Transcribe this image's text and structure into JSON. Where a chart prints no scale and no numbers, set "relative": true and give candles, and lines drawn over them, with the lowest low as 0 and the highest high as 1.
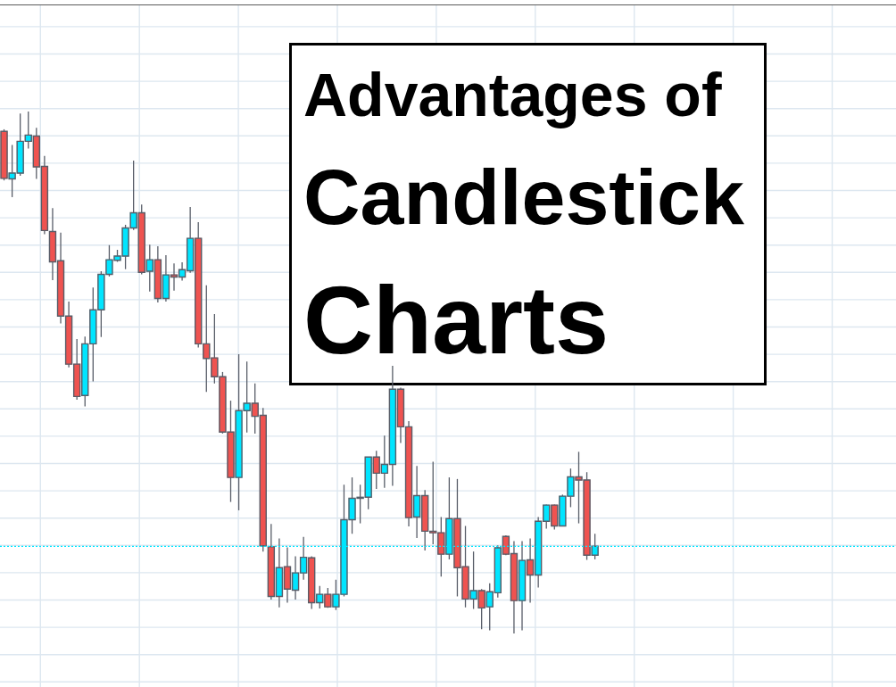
{
  "chart_data": {
    "type": "candlestick",
    "title": "Advantages of Candlestick Charts",
    "relative": true,
    "grid": true,
    "tick_labels": false,
    "categories": [
      null,
      null,
      null,
      null,
      null,
      null,
      null,
      null,
      null,
      null,
      null,
      null,
      null,
      null,
      null,
      null,
      null,
      null,
      null,
      null,
      null,
      null,
      null,
      null,
      null,
      null,
      null,
      null,
      null,
      null,
      null,
      null,
      null,
      null,
      null,
      null,
      null,
      null,
      null,
      null,
      null,
      null,
      null,
      null,
      null,
      null,
      null,
      null,
      null,
      null,
      null,
      null,
      null,
      null,
      null,
      null,
      null,
      null,
      null,
      null,
      null,
      null,
      null,
      null,
      null,
      null,
      null,
      null,
      null,
      null,
      null,
      null,
      null,
      null
    ],
    "ohlc": [
      [
        0.962,
        0.966,
        0.868,
        0.872
      ],
      [
        0.871,
        0.936,
        0.836,
        0.882
      ],
      [
        0.882,
        0.996,
        0.877,
        0.943
      ],
      [
        0.943,
        1,
        0.929,
        0.955
      ],
      [
        0.953,
        0.969,
        0.871,
        0.894
      ],
      [
        0.895,
        0.915,
        0.765,
        0.772
      ],
      [
        0.77,
        0.815,
        0.677,
        0.712
      ],
      [
        0.714,
        0.768,
        0.594,
        0.608
      ],
      [
        0.608,
        0.636,
        0.51,
        0.516
      ],
      [
        0.516,
        0.564,
        0.448,
        0.454
      ],
      [
        0.456,
        0.569,
        0.435,
        0.555
      ],
      [
        0.555,
        0.663,
        0.483,
        0.62
      ],
      [
        0.62,
        0.694,
        0.568,
        0.688
      ],
      [
        0.688,
        0.744,
        0.684,
        0.716
      ],
      [
        0.715,
        0.735,
        0.712,
        0.723
      ],
      [
        0.723,
        0.783,
        0.698,
        0.777
      ],
      [
        0.777,
        0.906,
        0.773,
        0.806
      ],
      [
        0.806,
        0.822,
        0.688,
        0.692
      ],
      [
        0.694,
        0.745,
        0.655,
        0.716
      ],
      [
        0.716,
        0.742,
        0.634,
        0.642
      ],
      [
        0.642,
        0.725,
        0.636,
        0.687
      ],
      [
        0.687,
        0.709,
        0.657,
        0.683
      ],
      [
        0.683,
        0.711,
        0.676,
        0.697
      ],
      [
        0.695,
        0.817,
        0.691,
        0.757
      ],
      [
        0.757,
        0.788,
        0.548,
        0.555
      ],
      [
        0.555,
        0.667,
        0.463,
        0.527
      ],
      [
        0.528,
        0.612,
        0.479,
        0.492
      ],
      [
        0.492,
        0.501,
        0.383,
        0.386
      ],
      [
        0.386,
        0.446,
        0.252,
        0.299
      ],
      [
        0.299,
        0.535,
        0.236,
        0.427
      ],
      [
        0.427,
        0.521,
        0.385,
        0.441
      ],
      [
        0.441,
        0.479,
        0.383,
        0.416
      ],
      [
        0.418,
        0.432,
        0.157,
        0.168
      ],
      [
        0.166,
        0.21,
        0.065,
        0.071
      ],
      [
        0.071,
        0.182,
        0.05,
        0.126
      ],
      [
        0.128,
        0.165,
        0.059,
        0.085
      ],
      [
        0.083,
        0.148,
        0.065,
        0.116
      ],
      [
        0.116,
        0.185,
        0.103,
        0.146
      ],
      [
        0.145,
        0.148,
        0.047,
        0.059
      ],
      [
        0.059,
        0.091,
        0.048,
        0.075
      ],
      [
        0.075,
        0.087,
        0.049,
        0.051
      ],
      [
        0.051,
        0.103,
        0.045,
        0.075
      ],
      [
        0.075,
        0.285,
        0.071,
        0.218
      ],
      [
        0.218,
        0.299,
        0.191,
        0.259
      ],
      [
        0.259,
        0.285,
        0.211,
        0.261
      ],
      [
        0.261,
        0.338,
        0.238,
        0.338
      ],
      [
        0.338,
        0.35,
        0.277,
        0.307
      ],
      [
        0.307,
        0.379,
        0.279,
        0.324
      ],
      [
        0.324,
        0.513,
        0.283,
        0.468
      ],
      [
        0.468,
        0.471,
        0.365,
        0.396
      ],
      [
        0.396,
        0.407,
        0.205,
        0.222
      ],
      [
        0.223,
        0.321,
        0.183,
        0.264
      ],
      [
        0.264,
        0.275,
        0.159,
        0.196
      ],
      [
        0.196,
        0.329,
        0.171,
        0.193
      ],
      [
        0.193,
        0.223,
        0.109,
        0.152
      ],
      [
        0.152,
        0.299,
        0.142,
        0.22
      ],
      [
        0.22,
        0.296,
        0.071,
        0.126
      ],
      [
        0.128,
        0.206,
        0.05,
        0.066
      ],
      [
        0.066,
        0.157,
        0.047,
        0.082
      ],
      [
        0.082,
        0.085,
        0.008,
        0.049
      ],
      [
        0.051,
        0.096,
        0.006,
        0.08
      ],
      [
        0.078,
        0.169,
        0.069,
        0.164
      ],
      [
        0.186,
        0.188,
        0.15,
        0.152
      ],
      [
        0.153,
        0.177,
        0,
        0.063
      ],
      [
        0.063,
        0.177,
        0.006,
        0.14
      ],
      [
        0.141,
        0.182,
        0.059,
        0.112
      ],
      [
        0.112,
        0.223,
        0.088,
        0.215
      ],
      [
        0.215,
        0.247,
        0.201,
        0.246
      ],
      [
        0.246,
        0.247,
        0.199,
        0.206
      ],
      [
        0.206,
        0.266,
        0.206,
        0.263
      ],
      [
        0.263,
        0.316,
        0.242,
        0.3
      ],
      [
        0.3,
        0.348,
        0.211,
        0.294
      ],
      [
        0.294,
        0.309,
        0.141,
        0.15
      ],
      [
        0.15,
        0.191,
        0.142,
        0.167
      ]
    ],
    "colors": [
      "#ef5350",
      "#00e5ff",
      "#00e5ff",
      "#00e5ff",
      "#ef5350",
      "#ef5350",
      "#ef5350",
      "#ef5350",
      "#ef5350",
      "#ef5350",
      "#00e5ff",
      "#00e5ff",
      "#00e5ff",
      "#00e5ff",
      "#00e5ff",
      "#00e5ff",
      "#00e5ff",
      "#ef5350",
      "#00e5ff",
      "#ef5350",
      "#00e5ff",
      "#ef5350",
      "#00e5ff",
      "#00e5ff",
      "#ef5350",
      "#ef5350",
      "#ef5350",
      "#ef5350",
      "#ef5350",
      "#00e5ff",
      "#00e5ff",
      "#ef5350",
      "#ef5350",
      "#ef5350",
      "#00e5ff",
      "#ef5350",
      "#00e5ff",
      "#00e5ff",
      "#ef5350",
      "#00e5ff",
      "#ef5350",
      "#00e5ff",
      "#00e5ff",
      "#00e5ff",
      "#00e5ff",
      "#00e5ff",
      "#ef5350",
      "#00e5ff",
      "#00e5ff",
      "#ef5350",
      "#ef5350",
      "#00e5ff",
      "#ef5350",
      "#ef5350",
      "#ef5350",
      "#00e5ff",
      "#ef5350",
      "#ef5350",
      "#00e5ff",
      "#ef5350",
      "#00e5ff",
      "#00e5ff",
      "#ef5350",
      "#ef5350",
      "#00e5ff",
      "#ef5350",
      "#00e5ff",
      "#00e5ff",
      "#ef5350",
      "#00e5ff",
      "#00e5ff",
      "#ef5350",
      "#ef5350",
      "#00e5ff"
    ],
    "ref_lines": [
      {
        "axis": "y",
        "value": 0.167,
        "color": "#00e5ff",
        "line_style": "dotted"
      }
    ]
  }
}
